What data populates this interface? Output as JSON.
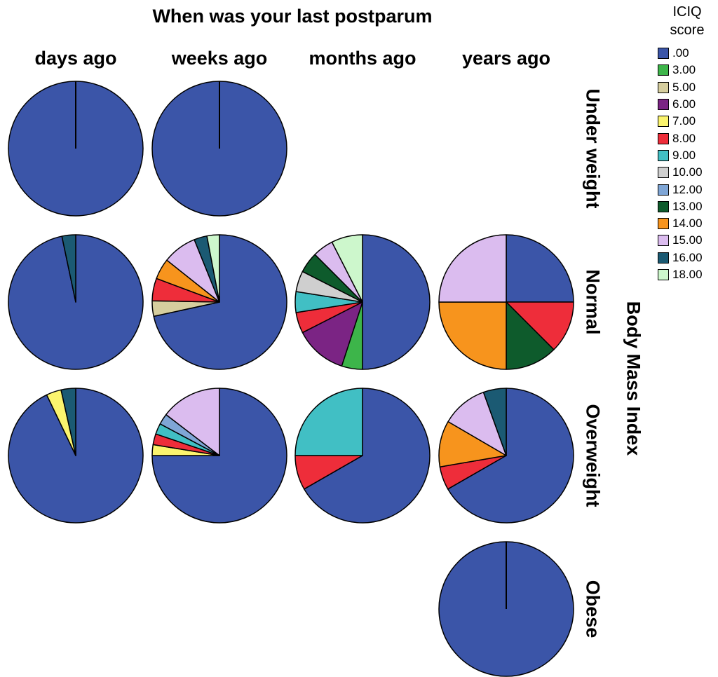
{
  "chart_data": {
    "type": "pie",
    "title": "When was your last postparum",
    "column_labels": [
      "days ago",
      "weeks ago",
      "months ago",
      "years ago"
    ],
    "row_axis_label": "Body Mass Index",
    "row_labels": [
      "Under weight",
      "Normal",
      "Overweight",
      "Obese"
    ],
    "legend": {
      "title_lines": [
        "ICIQ",
        "score"
      ],
      "placement": "right",
      "items": [
        {
          "label": ".00",
          "color": "#3b55a8"
        },
        {
          "label": "3.00",
          "color": "#3db54a"
        },
        {
          "label": "5.00",
          "color": "#d6ce9e"
        },
        {
          "label": "6.00",
          "color": "#7b2484"
        },
        {
          "label": "7.00",
          "color": "#fbf46e"
        },
        {
          "label": "8.00",
          "color": "#ee2d3a"
        },
        {
          "label": "9.00",
          "color": "#41bfc4"
        },
        {
          "label": "10.00",
          "color": "#cfcfcf"
        },
        {
          "label": "12.00",
          "color": "#7fa6d6"
        },
        {
          "label": "13.00",
          "color": "#0e5b2c"
        },
        {
          "label": "14.00",
          "color": "#f7941d"
        },
        {
          "label": "15.00",
          "color": "#dbbcef"
        },
        {
          "label": "16.00",
          "color": "#1b5a73"
        },
        {
          "label": "18.00",
          "color": "#cdf7cc"
        }
      ]
    },
    "pies": [
      {
        "row": "Under weight",
        "column": "days ago",
        "slices": [
          {
            "score": ".00",
            "value": 100
          }
        ]
      },
      {
        "row": "Under weight",
        "column": "weeks ago",
        "slices": [
          {
            "score": ".00",
            "value": 100
          }
        ]
      },
      {
        "row": "Normal",
        "column": "days ago",
        "slices": [
          {
            "score": ".00",
            "value": 96.7
          },
          {
            "score": "16.00",
            "value": 3.3
          }
        ]
      },
      {
        "row": "Normal",
        "column": "weeks ago",
        "slices": [
          {
            "score": ".00",
            "value": 71.6
          },
          {
            "score": "5.00",
            "value": 3.7
          },
          {
            "score": "8.00",
            "value": 5.4
          },
          {
            "score": "14.00",
            "value": 5.0
          },
          {
            "score": "15.00",
            "value": 8.2
          },
          {
            "score": "16.00",
            "value": 3.1
          },
          {
            "score": "18.00",
            "value": 3.0
          }
        ]
      },
      {
        "row": "Normal",
        "column": "months ago",
        "slices": [
          {
            "score": ".00",
            "value": 50.0
          },
          {
            "score": "3.00",
            "value": 5.0
          },
          {
            "score": "6.00",
            "value": 12.5
          },
          {
            "score": "8.00",
            "value": 5.0
          },
          {
            "score": "9.00",
            "value": 5.0
          },
          {
            "score": "10.00",
            "value": 5.0
          },
          {
            "score": "13.00",
            "value": 5.0
          },
          {
            "score": "15.00",
            "value": 5.0
          },
          {
            "score": "18.00",
            "value": 7.5
          }
        ]
      },
      {
        "row": "Normal",
        "column": "years ago",
        "slices": [
          {
            "score": ".00",
            "value": 25.0
          },
          {
            "score": "8.00",
            "value": 12.5
          },
          {
            "score": "13.00",
            "value": 12.5
          },
          {
            "score": "14.00",
            "value": 25.0
          },
          {
            "score": "15.00",
            "value": 25.0
          }
        ]
      },
      {
        "row": "Overweight",
        "column": "days ago",
        "slices": [
          {
            "score": ".00",
            "value": 92.9
          },
          {
            "score": "7.00",
            "value": 3.6
          },
          {
            "score": "16.00",
            "value": 3.5
          }
        ]
      },
      {
        "row": "Overweight",
        "column": "weeks ago",
        "slices": [
          {
            "score": ".00",
            "value": 75.0
          },
          {
            "score": "7.00",
            "value": 2.6
          },
          {
            "score": "8.00",
            "value": 2.6
          },
          {
            "score": "9.00",
            "value": 2.6
          },
          {
            "score": "12.00",
            "value": 2.6
          },
          {
            "score": "15.00",
            "value": 14.6
          }
        ]
      },
      {
        "row": "Overweight",
        "column": "months ago",
        "slices": [
          {
            "score": ".00",
            "value": 66.7
          },
          {
            "score": "8.00",
            "value": 8.3
          },
          {
            "score": "9.00",
            "value": 25.0
          }
        ]
      },
      {
        "row": "Overweight",
        "column": "years ago",
        "slices": [
          {
            "score": ".00",
            "value": 66.7
          },
          {
            "score": "8.00",
            "value": 5.6
          },
          {
            "score": "14.00",
            "value": 11.1
          },
          {
            "score": "15.00",
            "value": 11.1
          },
          {
            "score": "16.00",
            "value": 5.5
          }
        ]
      },
      {
        "row": "Obese",
        "column": "years ago",
        "slices": [
          {
            "score": ".00",
            "value": 100
          }
        ]
      }
    ]
  }
}
